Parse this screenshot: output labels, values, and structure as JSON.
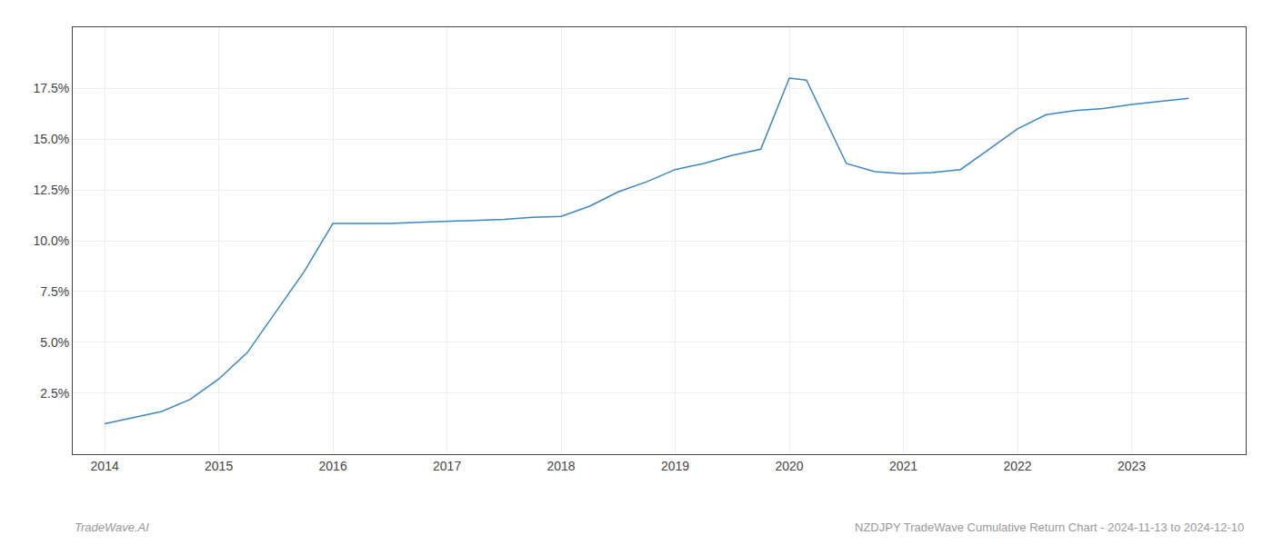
{
  "chart_data": {
    "type": "line",
    "x": [
      2014.0,
      2014.25,
      2014.5,
      2014.75,
      2015.0,
      2015.25,
      2015.5,
      2015.75,
      2016.0,
      2016.25,
      2016.5,
      2016.75,
      2017.0,
      2017.25,
      2017.5,
      2017.75,
      2018.0,
      2018.25,
      2018.5,
      2018.75,
      2019.0,
      2019.25,
      2019.5,
      2019.75,
      2020.0,
      2020.15,
      2020.5,
      2020.75,
      2021.0,
      2021.25,
      2021.5,
      2021.75,
      2022.0,
      2022.25,
      2022.5,
      2022.75,
      2023.0,
      2023.5
    ],
    "values": [
      1.0,
      1.3,
      1.6,
      2.2,
      3.2,
      4.5,
      6.5,
      8.5,
      10.85,
      10.85,
      10.85,
      10.9,
      10.95,
      11.0,
      11.05,
      11.15,
      11.2,
      11.7,
      12.4,
      12.9,
      13.5,
      13.8,
      14.2,
      14.5,
      18.0,
      17.9,
      13.8,
      13.4,
      13.3,
      13.35,
      13.5,
      14.5,
      15.5,
      16.2,
      16.4,
      16.5,
      16.7,
      17.0
    ],
    "color": "#3a86c8",
    "xlim": [
      2013.72,
      2024.0
    ],
    "ylim": [
      -0.5,
      20.5
    ],
    "xticks": [
      2014,
      2015,
      2016,
      2017,
      2018,
      2019,
      2020,
      2021,
      2022,
      2023
    ],
    "yticks": [
      {
        "value": 2.5,
        "label": "2.5%"
      },
      {
        "value": 5.0,
        "label": "5.0%"
      },
      {
        "value": 7.5,
        "label": "7.5%"
      },
      {
        "value": 10.0,
        "label": "10.0%"
      },
      {
        "value": 12.5,
        "label": "12.5%"
      },
      {
        "value": 15.0,
        "label": "15.0%"
      },
      {
        "value": 17.5,
        "label": "17.5%"
      }
    ],
    "grid": true,
    "annotations": [
      "TradeWave.AI",
      "NZDJPY TradeWave Cumulative Return Chart - 2024-11-13 to 2024-12-10"
    ]
  }
}
